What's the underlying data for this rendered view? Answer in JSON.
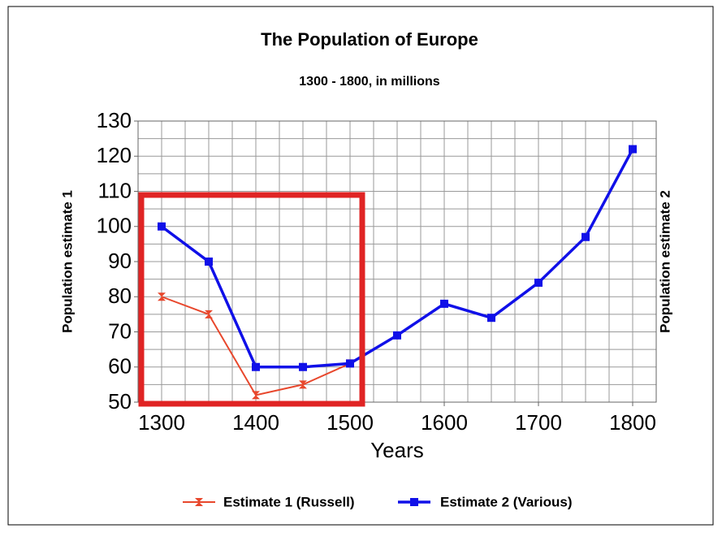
{
  "chart_data": {
    "type": "line",
    "title": "The Population of Europe",
    "subtitle": "1300 - 1800, in millions",
    "x_label": "Years",
    "y_label": "Population estimate 1",
    "y2_label": "Population estimate 2",
    "xlim": [
      1275,
      1825
    ],
    "xticks": [
      1300,
      1400,
      1500,
      1600,
      1700,
      1800
    ],
    "xgrid": [
      1275,
      1300,
      1325,
      1350,
      1375,
      1400,
      1425,
      1450,
      1475,
      1500,
      1525,
      1550,
      1575,
      1600,
      1625,
      1650,
      1675,
      1700,
      1725,
      1750,
      1775,
      1800,
      1825
    ],
    "ylim": [
      50,
      130
    ],
    "yticks": [
      50,
      60,
      70,
      80,
      90,
      100,
      110,
      120,
      130
    ],
    "ygrid": [
      50,
      55,
      60,
      65,
      70,
      75,
      80,
      85,
      90,
      95,
      100,
      105,
      110,
      115,
      120,
      125,
      130
    ],
    "grid": true,
    "series": [
      {
        "name": "Estimate 1 (Russell)",
        "color": "#e8472c",
        "marker": "bowtie",
        "x": [
          1300,
          1350,
          1400,
          1450,
          1500
        ],
        "values": [
          80,
          75,
          52,
          55,
          61
        ]
      },
      {
        "name": "Estimate 2 (Various)",
        "color": "#1010e8",
        "marker": "square",
        "x": [
          1300,
          1350,
          1400,
          1450,
          1500,
          1550,
          1600,
          1650,
          1700,
          1750,
          1800
        ],
        "values": [
          100,
          90,
          60,
          60,
          61,
          69,
          78,
          74,
          84,
          97,
          122
        ]
      }
    ],
    "legend": "bottom"
  }
}
